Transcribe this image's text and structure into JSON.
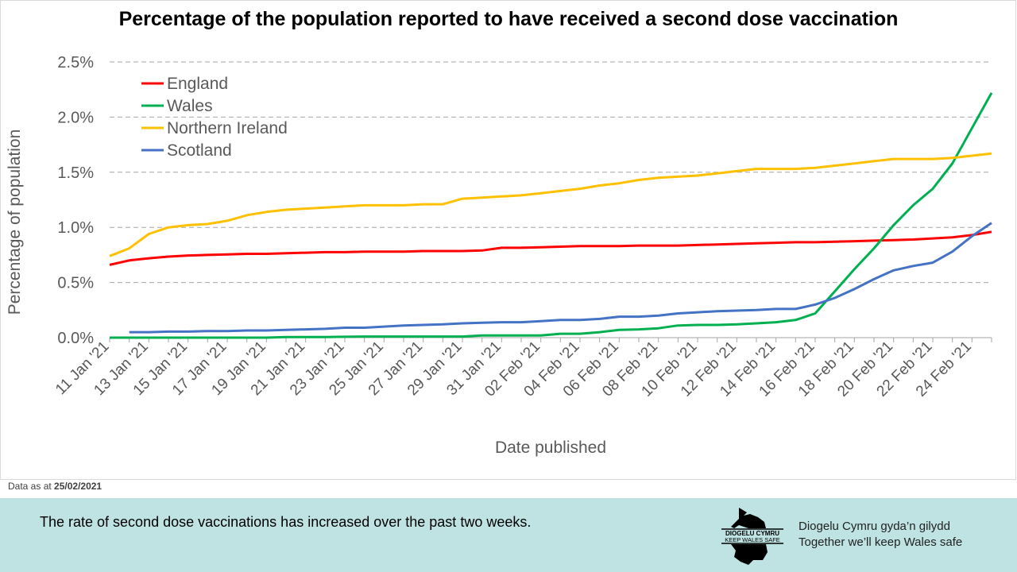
{
  "title": "Percentage of the population reported to have received a second dose vaccination",
  "note": {
    "label": "Data as at",
    "date": "25/02/2021"
  },
  "footer": {
    "message": "The rate of second dose vaccinations has increased over the past two weeks.",
    "tagline_welsh": "Diogelu Cymru gyda’n gilydd",
    "tagline_english": "Together we’ll keep Wales safe",
    "logo_text_1": "DIOGELU CYMRU",
    "logo_text_2": "KEEP WALES SAFE"
  },
  "chart_data": {
    "type": "line",
    "title": "Percentage of the population reported to have received a second dose vaccination",
    "xlabel": "Date published",
    "ylabel": "Percentage of population",
    "ylim": [
      0,
      2.5
    ],
    "yticks": [
      0,
      0.5,
      1.0,
      1.5,
      2.0,
      2.5
    ],
    "ytick_labels": [
      "0.0%",
      "0.5%",
      "1.0%",
      "1.5%",
      "2.0%",
      "2.5%"
    ],
    "grid": true,
    "legend_position": "top-left",
    "x_start": "2021-01-11",
    "x_count": 46,
    "xtick_labels": [
      "11 Jan '21",
      "13 Jan '21",
      "15 Jan '21",
      "17 Jan '21",
      "19 Jan '21",
      "21 Jan '21",
      "23 Jan '21",
      "25 Jan '21",
      "27 Jan '21",
      "29 Jan '21",
      "31 Jan '21",
      "02 Feb '21",
      "04 Feb '21",
      "06 Feb '21",
      "08 Feb '21",
      "10 Feb '21",
      "12 Feb '21",
      "14 Feb '21",
      "16 Feb '21",
      "18 Feb '21",
      "20 Feb '21",
      "22 Feb '21",
      "24 Feb '21"
    ],
    "series": [
      {
        "name": "England",
        "color": "#ff0000",
        "values": [
          0.66,
          0.7,
          0.72,
          0.735,
          0.745,
          0.75,
          0.755,
          0.76,
          0.76,
          0.765,
          0.77,
          0.775,
          0.775,
          0.78,
          0.78,
          0.78,
          0.785,
          0.785,
          0.785,
          0.79,
          0.815,
          0.815,
          0.82,
          0.825,
          0.83,
          0.83,
          0.83,
          0.835,
          0.835,
          0.835,
          0.84,
          0.845,
          0.85,
          0.855,
          0.86,
          0.865,
          0.865,
          0.87,
          0.875,
          0.88,
          0.885,
          0.89,
          0.9,
          0.91,
          0.93,
          0.96
        ]
      },
      {
        "name": "Wales",
        "color": "#00b050",
        "values": [
          0,
          0,
          0,
          0,
          0,
          0,
          0,
          0,
          0,
          0.005,
          0.005,
          0.005,
          0.008,
          0.01,
          0.01,
          0.01,
          0.01,
          0.01,
          0.01,
          0.02,
          0.02,
          0.02,
          0.02,
          0.035,
          0.035,
          0.05,
          0.07,
          0.075,
          0.085,
          0.11,
          0.115,
          0.115,
          0.12,
          0.13,
          0.14,
          0.16,
          0.22,
          0.42,
          0.62,
          0.81,
          1.02,
          1.2,
          1.35,
          1.58,
          1.9,
          2.22
        ]
      },
      {
        "name": "Northern Ireland",
        "color": "#ffc000",
        "values": [
          0.74,
          0.81,
          0.94,
          1.0,
          1.02,
          1.03,
          1.06,
          1.11,
          1.14,
          1.16,
          1.17,
          1.18,
          1.19,
          1.2,
          1.2,
          1.2,
          1.21,
          1.21,
          1.26,
          1.27,
          1.28,
          1.29,
          1.31,
          1.33,
          1.35,
          1.38,
          1.4,
          1.43,
          1.45,
          1.46,
          1.47,
          1.49,
          1.51,
          1.53,
          1.53,
          1.53,
          1.54,
          1.56,
          1.58,
          1.6,
          1.62,
          1.62,
          1.62,
          1.63,
          1.65,
          1.67
        ]
      },
      {
        "name": "Scotland",
        "color": "#4472c4",
        "values": [
          null,
          0.05,
          0.05,
          0.055,
          0.055,
          0.06,
          0.06,
          0.065,
          0.065,
          0.07,
          0.075,
          0.08,
          0.09,
          0.09,
          0.1,
          0.11,
          0.115,
          0.12,
          0.13,
          0.135,
          0.14,
          0.14,
          0.15,
          0.16,
          0.16,
          0.17,
          0.19,
          0.19,
          0.2,
          0.22,
          0.23,
          0.24,
          0.245,
          0.25,
          0.26,
          0.26,
          0.3,
          0.36,
          0.44,
          0.53,
          0.61,
          0.65,
          0.68,
          0.78,
          0.92,
          1.04
        ]
      }
    ]
  }
}
